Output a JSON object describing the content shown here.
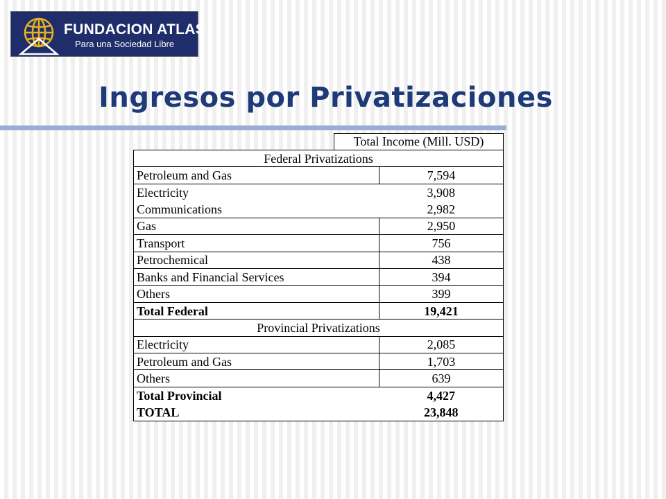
{
  "logo": {
    "name_1": "FUNDACION",
    "name_2": "ATLAS",
    "tagline": "Para una Sociedad Libre",
    "colors": {
      "background": "#1f2d6b",
      "emblem": "#e7b21e"
    }
  },
  "slide": {
    "title": "Ingresos por Privatizaciones",
    "title_color": "#1f3a78",
    "rule_color": "#9aaed4"
  },
  "table": {
    "column_header": "Total Income (Mill. USD)",
    "federal_header": "Federal Privatizations",
    "federal_rows": [
      {
        "label": "Petroleum and Gas",
        "value": "7,594"
      },
      {
        "label": "Electricity",
        "value": "3,908"
      },
      {
        "label": "Communications",
        "value": "2,982"
      },
      {
        "label": "Gas",
        "value": "2,950"
      },
      {
        "label": "Transport",
        "value": "756"
      },
      {
        "label": "Petrochemical",
        "value": "438"
      },
      {
        "label": "Banks and Financial Services",
        "value": "394"
      },
      {
        "label": "Others",
        "value": "399"
      }
    ],
    "total_federal": {
      "label": "Total Federal",
      "value": "19,421"
    },
    "provincial_header": "Provincial Privatizations",
    "provincial_rows": [
      {
        "label": "Electricity",
        "value": "2,085"
      },
      {
        "label": "Petroleum and Gas",
        "value": "1,703"
      },
      {
        "label": "Others",
        "value": "639"
      }
    ],
    "total_provincial": {
      "label": "Total Provincial",
      "value": "4,427"
    },
    "grand_total": {
      "label": "TOTAL",
      "value": "23,848"
    }
  }
}
